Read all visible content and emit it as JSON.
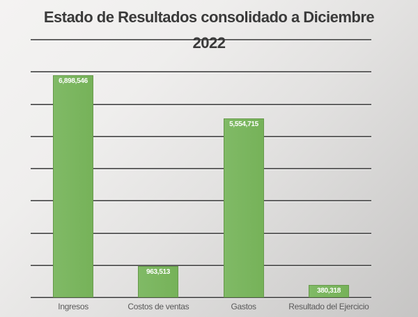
{
  "title": {
    "line1": "Estado de Resultados consolidado a Diciembre",
    "line2": "2022"
  },
  "chart_data": {
    "type": "bar",
    "title": "Estado de Resultados consolidado a Diciembre 2022",
    "categories": [
      "Ingresos",
      "Costos de ventas",
      "Gastos",
      "Resultado del Ejercicio"
    ],
    "values": [
      6898546,
      963513,
      5554715,
      380318
    ],
    "data_labels": [
      "6,898,546",
      "963,513",
      "5,554,715",
      "380,318"
    ],
    "xlabel": "",
    "ylabel": "",
    "ylim": [
      0,
      8000000
    ],
    "gridline_interval": 1000000,
    "grid": true,
    "legend_position": "none",
    "data_label_position": "inside-end"
  },
  "colors": {
    "bar_fill": "#7ab561",
    "bar_border": "#5a863e",
    "gridline": "#616161",
    "title_text": "#3a3a3a",
    "category_text": "#595959",
    "data_label_text": "#ffffff",
    "background_light": "#f4f3f2",
    "background_dark": "#c6c5c4"
  }
}
